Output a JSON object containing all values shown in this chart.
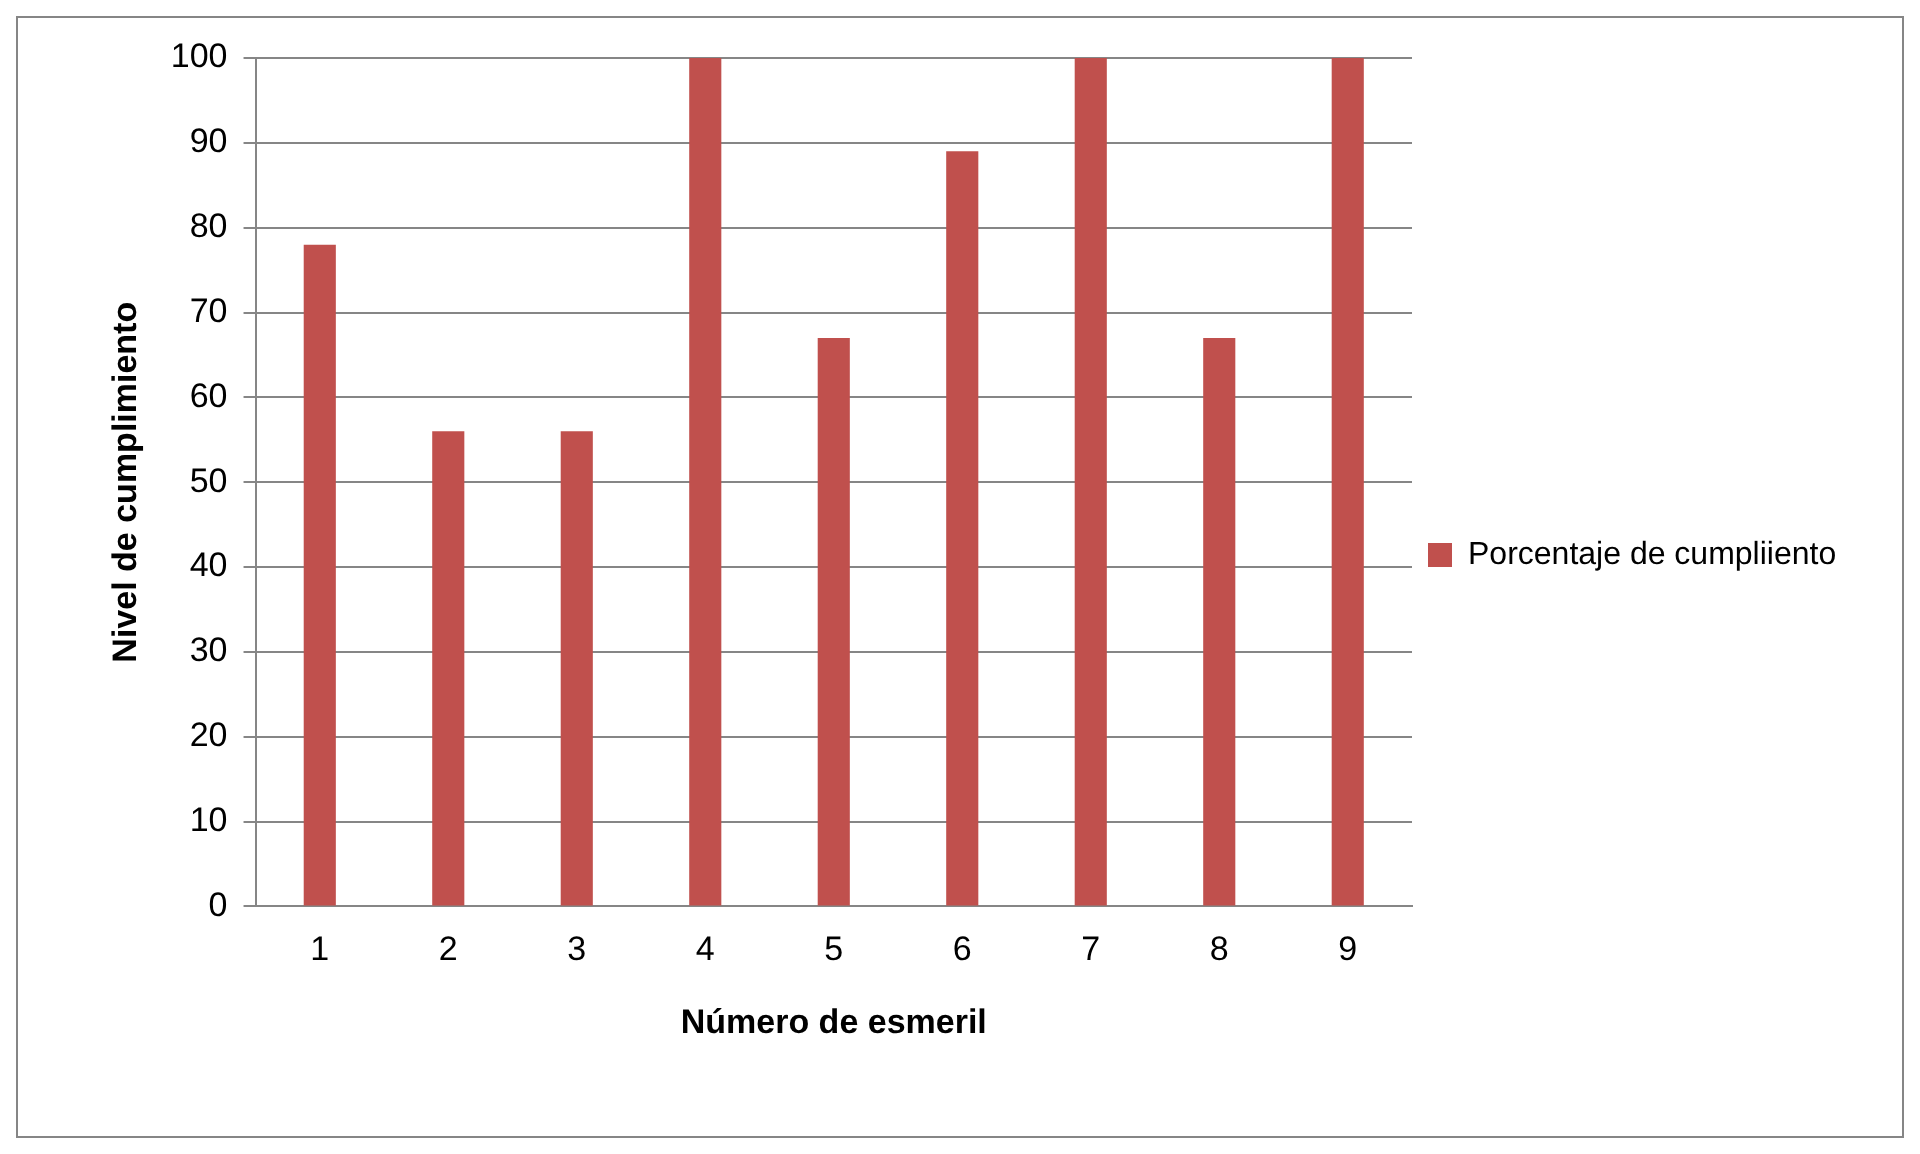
{
  "chart_data": {
    "type": "bar",
    "xlabel": "Número de esmeril",
    "ylabel": "Nivel de cumplimiento",
    "categories": [
      "1",
      "2",
      "3",
      "4",
      "5",
      "6",
      "7",
      "8",
      "9"
    ],
    "series": [
      {
        "name": "Porcentaje de cumpliiento",
        "color": "#c0504d",
        "values": [
          78,
          56,
          56,
          100,
          67,
          89,
          100,
          67,
          100
        ]
      }
    ],
    "ylim": [
      0,
      100
    ],
    "yticks": [
      0,
      10,
      20,
      30,
      40,
      50,
      60,
      70,
      80,
      90,
      100
    ],
    "grid": "y",
    "legend": "right"
  }
}
